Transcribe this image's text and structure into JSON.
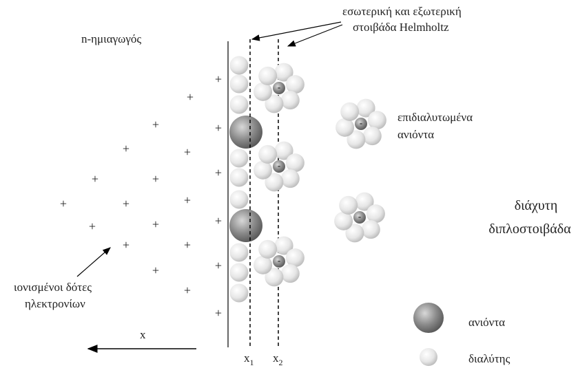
{
  "header": {
    "title": "n-ημιαγωγός"
  },
  "labels": {
    "helmholtz": [
      "εσωτερική και εξωτερική",
      "στοιβάδα Helmholtz"
    ],
    "solvated_anions": [
      "επιδιαλυτωμένα",
      "ανιόντα"
    ],
    "diffuse_layer": [
      "διάχυτη",
      "διπλοστοιβάδα"
    ],
    "ionized_donors": [
      "ιονισμένοι δότες",
      "ηλεκτρονίων"
    ],
    "x_axis": "x",
    "plane_1": {
      "symbol": "x",
      "subscript": "1"
    },
    "plane_2": {
      "symbol": "x",
      "subscript": "2"
    }
  },
  "symbols": {
    "positive": "+",
    "negative": "-"
  },
  "legend": {
    "items": [
      {
        "label": "ανιόντα"
      },
      {
        "label": "διαλύτης"
      }
    ]
  }
}
